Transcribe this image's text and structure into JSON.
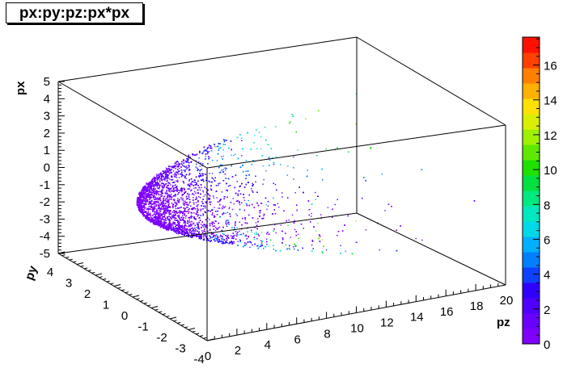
{
  "chart_data": {
    "type": "scatter",
    "title": "px:py:pz:px*px",
    "xlabel": "pz",
    "ylabel": "py",
    "zlabel": "px",
    "colorbar_label": "",
    "axes": {
      "pz": {
        "range": [
          0,
          20
        ],
        "ticks": [
          "0",
          "2",
          "4",
          "6",
          "8",
          "10",
          "12",
          "14",
          "16",
          "18",
          "20"
        ]
      },
      "py": {
        "range": [
          -4,
          4
        ],
        "ticks": [
          "4",
          "3",
          "2",
          "1",
          "0",
          "-1",
          "-2",
          "-3",
          "-4"
        ]
      },
      "px": {
        "range": [
          -5,
          5
        ],
        "ticks": [
          "5",
          "4",
          "3",
          "2",
          "1",
          "0",
          "-1",
          "-2",
          "-3",
          "-4",
          "-5"
        ]
      }
    },
    "color_scale": {
      "range": [
        0,
        17.6
      ],
      "ticks": [
        "0",
        "2",
        "4",
        "6",
        "8",
        "10",
        "12",
        "14",
        "16"
      ],
      "palette": [
        "#8000ff",
        "#6a00ff",
        "#5000ff",
        "#3000ff",
        "#1040ff",
        "#0080ff",
        "#00b0ff",
        "#00d8e8",
        "#00e8c0",
        "#00e880",
        "#00e040",
        "#20e000",
        "#60e800",
        "#a0f000",
        "#d8f000",
        "#ffe000",
        "#ffb000",
        "#ff8000",
        "#ff4000",
        "#ff1000"
      ]
    },
    "description_marks": "points form a paraboloid shell px^2+py^2 proportional to pz; color = px*px"
  }
}
